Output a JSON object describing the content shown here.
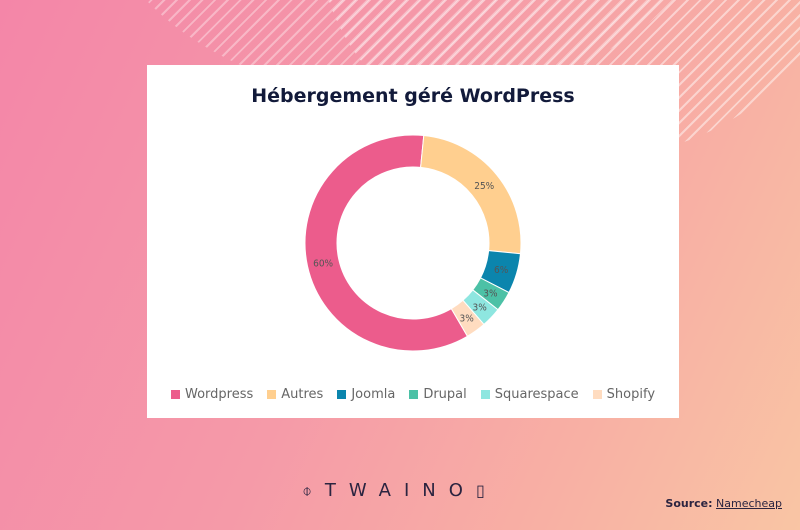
{
  "chart_data": {
    "type": "pie",
    "title": "Hébergement  géré WordPress",
    "donut": true,
    "categories": [
      "Wordpress",
      "Autres",
      "Joomla",
      "Drupal",
      "Squarespace",
      "Shopify"
    ],
    "values": [
      60,
      25,
      6,
      3,
      3,
      3
    ],
    "labels": [
      "60%",
      "25%",
      "6%",
      "3%",
      "3%",
      "3%"
    ],
    "colors": [
      "#ec5c8c",
      "#ffcf8f",
      "#0b85ad",
      "#4cc1a6",
      "#8ee6e0",
      "#ffdcc0"
    ],
    "legend_position": "bottom"
  },
  "branding": {
    "logo_text": "TWAINO",
    "logo_mark": "⌽",
    "source_label": "Source:",
    "source_link": "Namecheap"
  }
}
